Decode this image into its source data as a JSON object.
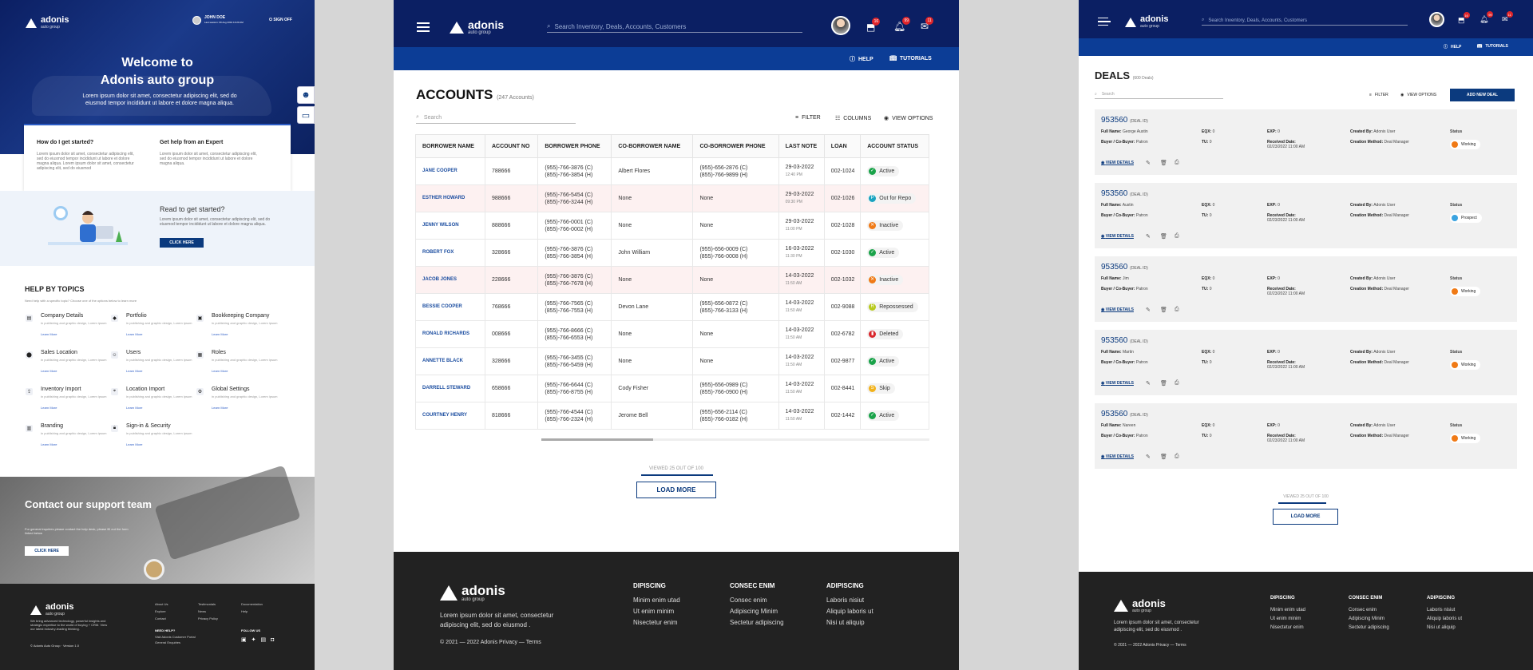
{
  "brand": {
    "name": "adonis",
    "tagline": "auto group"
  },
  "help": {
    "user_name": "JOHN DOE",
    "user_sub": "Last session: 09 Aug 2019 10:20 AM",
    "sign_off": "SIGN OFF",
    "welcome_line1": "Welcome to",
    "welcome_line2": "Adonis auto group",
    "lorem": "Lorem ipsum dolor sit amet, consectetur adipiscing elit, sed do eiusmod tempor incididunt ut labore et dolore magna aliqua.",
    "card1_title": "How do I get started?",
    "card1_text": "Lorem ipsum dolor sit amet, consectetur adipiscing elit, sed do eiusmod tempor incididunt ut labore et dolore magna aliqua. Lorem ipsum dolor sit amet, consectetur adipiscing elit, sed do eiusmod",
    "card2_title": "Get help from an Expert",
    "card2_text": "Lorem ipsum dolor sit amet, consectetur adipiscing elit, sed do eiusmod tempor incididunt ut labore et dolore magna aliqua.",
    "ready_title": "Read to get started?",
    "ready_text": "Lorem ipsum dolor sit amet, consectetur adipiscing elit, sed do eiusmod tempor incididunt ut labore et dolore magna aliqua.",
    "ready_btn": "CLICK HERE",
    "topics_title": "HELP BY TOPICS",
    "topics_sub": "Need help with a specific topic? Choose one of the options below to learn more",
    "topic_desc": "in publishing and graphic design, Lorem ipsum",
    "learn_more": "Learn More",
    "topics": [
      "Company Details",
      "Portfolio",
      "Bookkeeping Company",
      "Sales Location",
      "Users",
      "Roles",
      "Inventory Import",
      "Location Import",
      "Global Settings",
      "Branding",
      "Sign-in & Security"
    ],
    "contact_title": "Contact our support team",
    "contact_text": "For general inquiries please contact the help desk, please fill out the form linked below",
    "contact_btn": "CLICK HERE",
    "footer_lorem": "We bring advanced technology, powerful insights and strategic expertise to the world of buying + CRM. View our latest industry-leading thinking.",
    "footer_copy": "© Adonis Auto Group · Version 1.0",
    "footer_col1": [
      "About Us",
      "Explore",
      "Contact"
    ],
    "footer_col2": [
      "Testimonials",
      "News",
      "Privacy Policy"
    ],
    "footer_col3": [
      "Documentation",
      "Help"
    ],
    "need_help": "NEED HELP?",
    "need_help_links": [
      "Visit Adonis Customer Portal",
      "General Enquiries"
    ],
    "follow_us": "FOLLOW US"
  },
  "header": {
    "search_placeholder": "Search Inventory, Deals, Accounts, Customers",
    "badges": [
      "16",
      "99",
      "11"
    ],
    "help": "HELP",
    "tutorials": "TUTORIALS"
  },
  "accounts": {
    "title": "ACCOUNTS",
    "count": "(247 Accounts)",
    "search": "Search",
    "filter": "FILTER",
    "columns_label": "COLUMNS",
    "view_options": "VIEW OPTIONS",
    "columns": [
      "BORROWER NAME",
      "ACCOUNT NO",
      "BORROWER PHONE",
      "CO-BORROWER NAME",
      "CO-BORROWER PHONE",
      "LAST NOTE",
      "LOAN",
      "ACCOUNT STATUS"
    ],
    "rows": [
      {
        "name": "JANE COOPER",
        "acct": "788666",
        "p1": "(955)-766-3876 (C)",
        "p2": "(855)-766-3854 (H)",
        "co": "Albert Flores",
        "cp1": "(955)-656-2876 (C)",
        "cp2": "(855)-766-9899 (H)",
        "nd": "29-03-2022",
        "nt": "12:40 PM",
        "loan": "002-1024",
        "status": "Active"
      },
      {
        "name": "ESTHER HOWARD",
        "acct": "988666",
        "p1": "(955)-766-5454 (C)",
        "p2": "(855)-766-3244 (H)",
        "co": "None",
        "cp1": "None",
        "cp2": "",
        "nd": "29-03-2022",
        "nt": "09:30 PM",
        "loan": "002-1026",
        "status": "Out for Repo"
      },
      {
        "name": "JENNY WILSON",
        "acct": "888666",
        "p1": "(955)-766-0001 (C)",
        "p2": "(855)-766-0002 (H)",
        "co": "None",
        "cp1": "None",
        "cp2": "",
        "nd": "29-03-2022",
        "nt": "11:00 PM",
        "loan": "002-1028",
        "status": "Inactive"
      },
      {
        "name": "ROBERT FOX",
        "acct": "328666",
        "p1": "(955)-766-3876 (C)",
        "p2": "(855)-766-3854 (H)",
        "co": "John William",
        "cp1": "(955)-656-0009 (C)",
        "cp2": "(855)-766-0008 (H)",
        "nd": "16-03-2022",
        "nt": "11:30 PM",
        "loan": "002-1030",
        "status": "Active"
      },
      {
        "name": "JACOB JONES",
        "acct": "228666",
        "p1": "(955)-766-3876 (C)",
        "p2": "(855)-766-7678 (H)",
        "co": "None",
        "cp1": "None",
        "cp2": "",
        "nd": "14-03-2022",
        "nt": "11:50 AM",
        "loan": "002-1032",
        "status": "Inactive"
      },
      {
        "name": "BESSIE COOPER",
        "acct": "768666",
        "p1": "(955)-766-7565 (C)",
        "p2": "(855)-766-7553 (H)",
        "co": "Devon Lane",
        "cp1": "(955)-656-0872 (C)",
        "cp2": "(855)-766-3133 (H)",
        "nd": "14-03-2022",
        "nt": "11:50 AM",
        "loan": "002-9088",
        "status": "Repossessed"
      },
      {
        "name": "RONALD RICHARDS",
        "acct": "008666",
        "p1": "(955)-766-8666 (C)",
        "p2": "(855)-766-6553 (H)",
        "co": "None",
        "cp1": "None",
        "cp2": "",
        "nd": "14-03-2022",
        "nt": "11:50 AM",
        "loan": "002-6782",
        "status": "Deleted"
      },
      {
        "name": "ANNETTE BLACK",
        "acct": "328666",
        "p1": "(955)-766-3455 (C)",
        "p2": "(855)-766-5459 (H)",
        "co": "None",
        "cp1": "None",
        "cp2": "",
        "nd": "14-03-2022",
        "nt": "11:50 AM",
        "loan": "002-9877",
        "status": "Active"
      },
      {
        "name": "DARRELL STEWARD",
        "acct": "658666",
        "p1": "(955)-766-6644 (C)",
        "p2": "(855)-766-8755 (H)",
        "co": "Cody Fisher",
        "cp1": "(955)-656-0989 (C)",
        "cp2": "(855)-766-0900 (H)",
        "nd": "14-03-2022",
        "nt": "11:50 AM",
        "loan": "002-8441",
        "status": "Skip"
      },
      {
        "name": "COURTNEY HENRY",
        "acct": "818666",
        "p1": "(955)-766-4544 (C)",
        "p2": "(855)-766-2324 (H)",
        "co": "Jerome Bell",
        "cp1": "(955)-656-2114 (C)",
        "cp2": "(855)-766-0182 (H)",
        "nd": "14-03-2022",
        "nt": "11:50 AM",
        "loan": "002-1442",
        "status": "Active"
      }
    ],
    "viewed": "VIEWED 25 OUT OF 100",
    "load_more": "LOAD MORE"
  },
  "status_colors": {
    "Active": "#1aa34a",
    "Out for Repo": "#1aa3c0",
    "Inactive": "#f07a16",
    "Repossessed": "#b7c91b",
    "Deleted": "#d9262b",
    "Skip": "#f2b21b"
  },
  "footer": {
    "lorem": "Lorem ipsum dolor sit amet, consectetur adipiscing elit, sed do eiusmod .",
    "copy": "© 2021 — 2022   Adonis Privacy — Terms",
    "cols": [
      {
        "title": "DIPISCING",
        "links": [
          "Minim enim utad",
          "Ut enim minim",
          "Nisectetur enim"
        ]
      },
      {
        "title": "CONSEC ENIM",
        "links": [
          "Consec enim",
          "Adipiscing Minim",
          "Sectetur adipiscing"
        ]
      },
      {
        "title": "ADIPISCING",
        "links": [
          "Laboris nisiut",
          "Aliquip laboris ut",
          "Nisi ut aliquip"
        ]
      }
    ]
  },
  "deals": {
    "title": "DEALS",
    "count": "(600 Deals)",
    "search": "Search",
    "filter": "FILTER",
    "view_options": "VIEW OPTIONS",
    "add": "ADD NEW DEAL",
    "id_label": "(DEAL ID)",
    "view_details": "VIEW DETAILS",
    "items": [
      {
        "id": "953560",
        "full": "George Austin",
        "eqx": "0",
        "exp": "0",
        "created": "Adonis User",
        "status": "Working",
        "date": "02/23/2022 11:00 AM"
      },
      {
        "id": "953560",
        "full": "Austin",
        "eqx": "0",
        "exp": "0",
        "created": "Adonis User",
        "status": "Prospect",
        "date": "02/23/2022 11:00 AM"
      },
      {
        "id": "953560",
        "full": "Jim",
        "eqx": "0",
        "exp": "0",
        "created": "Adonis User",
        "status": "Working",
        "date": "02/23/2022 11:00 AM"
      },
      {
        "id": "953560",
        "full": "Martin",
        "eqx": "0",
        "exp": "0",
        "created": "Adonis User",
        "status": "Working",
        "date": "02/23/2022 11:00 AM"
      },
      {
        "id": "953560",
        "full": "Nareen",
        "eqx": "0",
        "exp": "0",
        "created": "Adonis User",
        "status": "Working",
        "date": "02/23/2022 11:00 AM"
      }
    ],
    "labels": {
      "full": "Full Name:",
      "eqx": "EQX:",
      "exp": "EXP:",
      "created": "Created By:",
      "status": "Status",
      "buyer": "Buyer / Co-Buyer:",
      "buyer_val": "Patron",
      "tu": "TU:",
      "tu_val": "0",
      "received": "Received Date:",
      "method": "Creation Method:",
      "method_val": "Deal Manager"
    },
    "viewed": "VIEWED 25 OUT OF 100",
    "load_more": "LOAD MORE"
  }
}
